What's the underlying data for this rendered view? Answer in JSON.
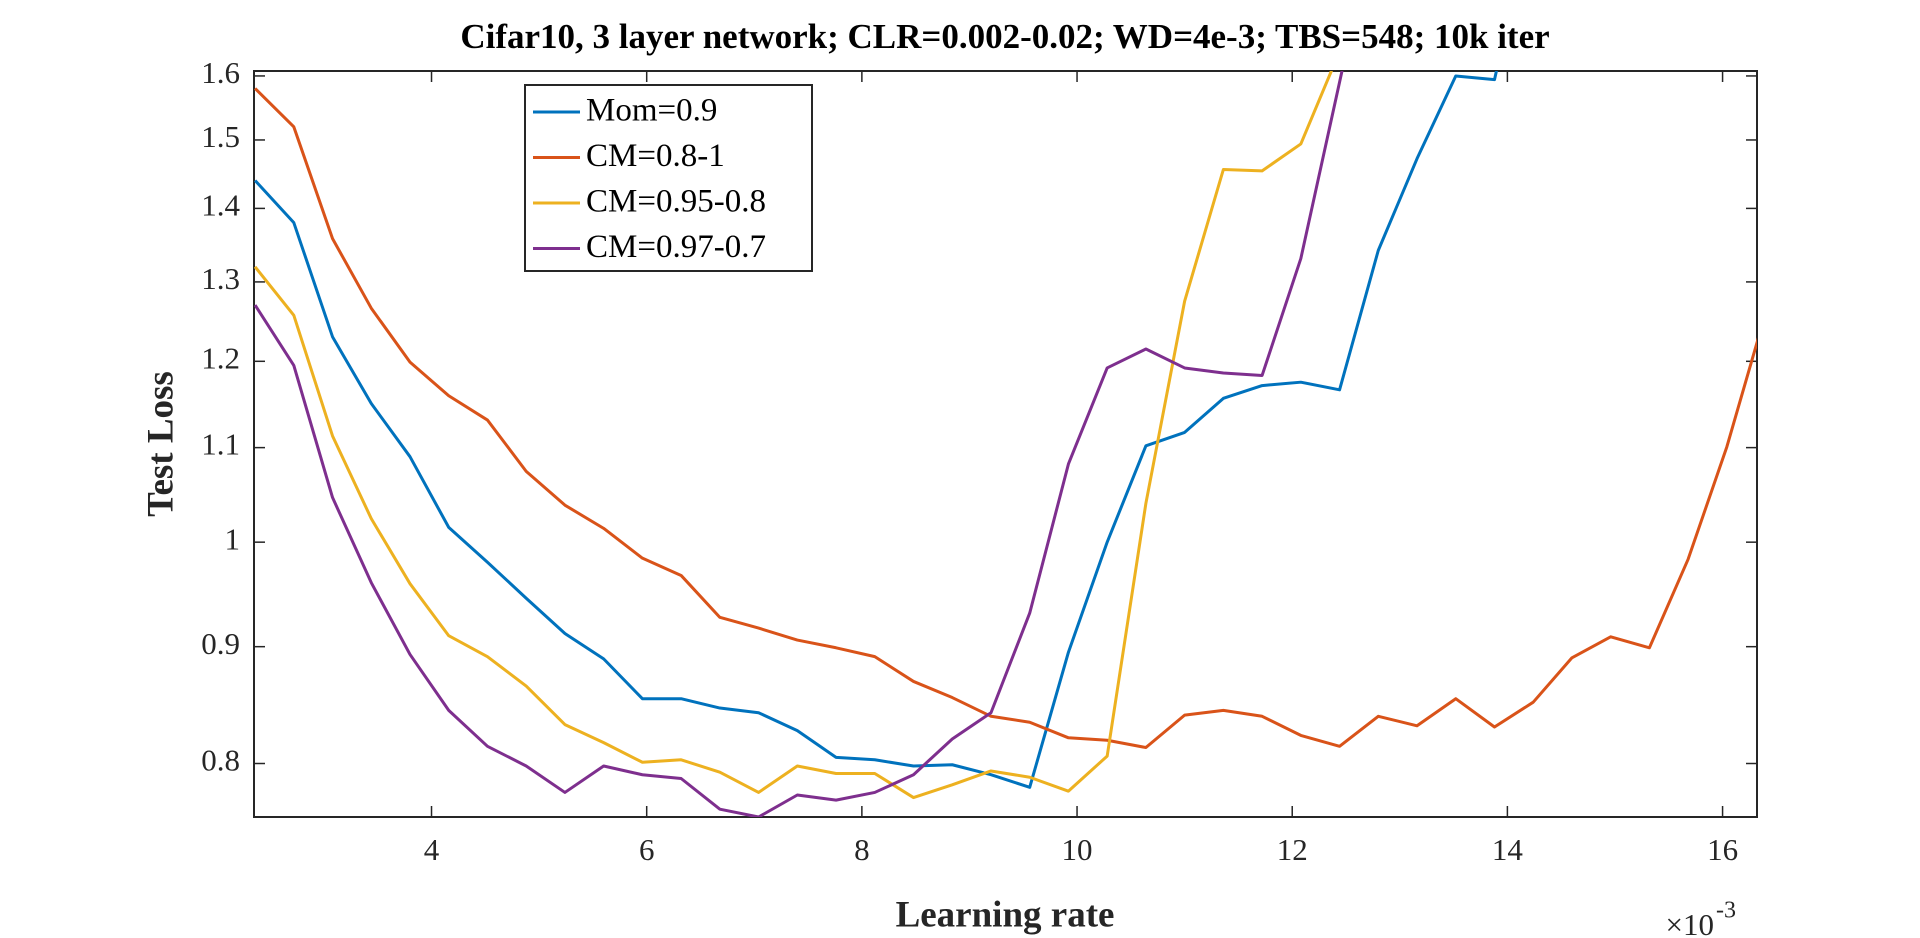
{
  "chart_data": {
    "type": "line",
    "title": "Cifar10, 3 layer network; CLR=0.002-0.02; WD=4e-3; TBS=548; 10k iter",
    "x_label": "Learning rate",
    "y_label": "Test Loss",
    "x_multiplier": {
      "base": "×10",
      "exponent": "-3"
    },
    "yscale": "log",
    "grid": false,
    "legend": "north-west",
    "xlim": [
      2.35,
      16.32
    ],
    "ylim": [
      0.758,
      1.608
    ],
    "xticks": [
      4,
      6,
      8,
      10,
      12,
      14,
      16
    ],
    "yticks": [
      0.8,
      0.9,
      {
        "value": 1,
        "label": "1"
      },
      1.1,
      1.2,
      1.3,
      1.4,
      1.5,
      1.6
    ],
    "x": [
      2.36,
      2.72,
      3.08,
      3.44,
      3.8,
      4.16,
      4.52,
      4.88,
      5.24,
      5.6,
      5.96,
      6.32,
      6.68,
      7.04,
      7.4,
      7.76,
      8.12,
      8.48,
      8.84,
      9.2,
      9.56,
      9.92,
      10.28,
      10.64,
      11.0,
      11.36,
      11.72,
      12.08,
      12.44,
      12.8,
      13.16,
      13.52,
      13.88,
      14.24,
      14.6,
      14.96,
      15.32,
      15.68,
      16.04,
      16.4
    ],
    "series": [
      {
        "name": "Mom=0.9",
        "color": "#0072BD",
        "values": [
          1.44,
          1.38,
          1.23,
          1.15,
          1.09,
          1.015,
          0.98,
          0.945,
          0.912,
          0.889,
          0.854,
          0.854,
          0.846,
          0.842,
          0.827,
          0.805,
          0.803,
          0.798,
          0.799,
          0.791,
          0.781,
          0.895,
          1.0,
          1.102,
          1.117,
          1.156,
          1.171,
          1.175,
          1.166,
          1.342,
          1.472,
          1.6,
          1.594,
          1.9,
          null,
          null,
          null,
          null,
          null,
          null
        ]
      },
      {
        "name": "CM=0.8-1",
        "color": "#D95319",
        "values": [
          1.58,
          1.52,
          1.358,
          1.266,
          1.199,
          1.159,
          1.131,
          1.074,
          1.038,
          1.014,
          0.984,
          0.967,
          0.927,
          0.917,
          0.906,
          0.899,
          0.891,
          0.869,
          0.855,
          0.839,
          0.834,
          0.821,
          0.819,
          0.813,
          0.84,
          0.844,
          0.839,
          0.823,
          0.814,
          0.839,
          0.831,
          0.854,
          0.83,
          0.851,
          0.89,
          0.909,
          0.899,
          0.983,
          1.101,
          1.26
        ]
      },
      {
        "name": "CM=0.95-0.8",
        "color": "#EDB120",
        "values": [
          1.32,
          1.257,
          1.113,
          1.024,
          0.959,
          0.91,
          0.891,
          0.865,
          0.832,
          0.817,
          0.801,
          0.803,
          0.793,
          0.777,
          0.798,
          0.792,
          0.792,
          0.773,
          0.783,
          0.794,
          0.789,
          0.778,
          0.806,
          1.04,
          1.275,
          1.456,
          1.454,
          1.494,
          1.64,
          null,
          null,
          null,
          null,
          null,
          null,
          null,
          null,
          null,
          null,
          null
        ]
      },
      {
        "name": "CM=0.97-0.7",
        "color": "#7E2F8E",
        "values": [
          1.27,
          1.195,
          1.046,
          0.96,
          0.893,
          0.844,
          0.814,
          0.798,
          0.777,
          0.798,
          0.791,
          0.788,
          0.764,
          0.758,
          0.775,
          0.771,
          0.777,
          0.791,
          0.82,
          0.842,
          0.931,
          1.082,
          1.192,
          1.215,
          1.192,
          1.186,
          1.183,
          1.331,
          1.59,
          1.9,
          null,
          null,
          null,
          null,
          null,
          null,
          null,
          null,
          null,
          null
        ]
      }
    ]
  }
}
